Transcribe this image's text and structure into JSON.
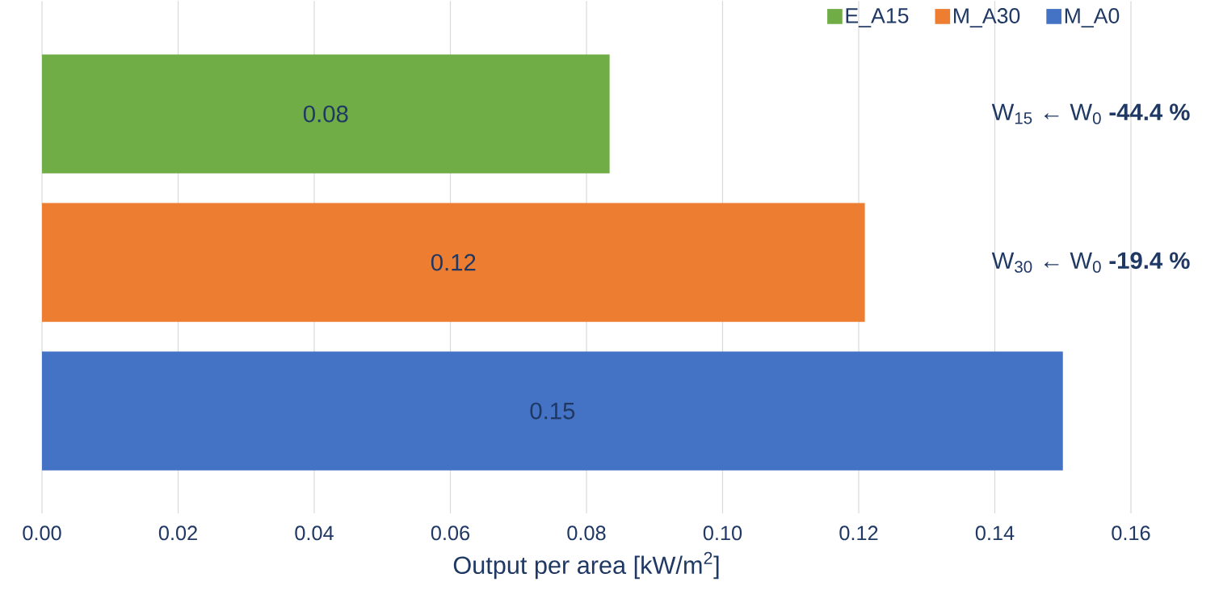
{
  "chart_data": {
    "type": "bar",
    "orientation": "horizontal",
    "xlabel": "Output per area [kW/m$^{2}$]",
    "categories": [
      null,
      null,
      null
    ],
    "series": [
      {
        "name": "E_A15",
        "color": "#70ad47",
        "values": [
          0.0834,
          null,
          null
        ],
        "value_labels": [
          "0.08",
          null,
          null
        ]
      },
      {
        "name": "M_A30",
        "color": "#ed7d31",
        "values": [
          null,
          0.1209,
          null
        ],
        "value_labels": [
          null,
          "0.12",
          null
        ]
      },
      {
        "name": "M_A0",
        "color": "#4472c4",
        "values": [
          null,
          null,
          0.15
        ],
        "value_labels": [
          null,
          null,
          "0.15"
        ]
      }
    ],
    "annotations": [
      "W$_{15}$ ← W$_{0}$   **-44.4 %**",
      "W$_{30}$ ← W$_{0}$   **-19.4 %**"
    ],
    "xlim": [
      0,
      0.16
    ],
    "xticks": [
      {
        "value": 0,
        "label": "0.00"
      },
      {
        "value": 0.02,
        "label": "0.02"
      },
      {
        "value": 0.04,
        "label": "0.04"
      },
      {
        "value": 0.06,
        "label": "0.06"
      },
      {
        "value": 0.08,
        "label": "0.08"
      },
      {
        "value": 0.1,
        "label": "0.10"
      },
      {
        "value": 0.12,
        "label": "0.12"
      },
      {
        "value": 0.14,
        "label": "0.14"
      },
      {
        "value": 0.16,
        "label": "0.16"
      }
    ],
    "grid": "x",
    "legend": "top right"
  }
}
